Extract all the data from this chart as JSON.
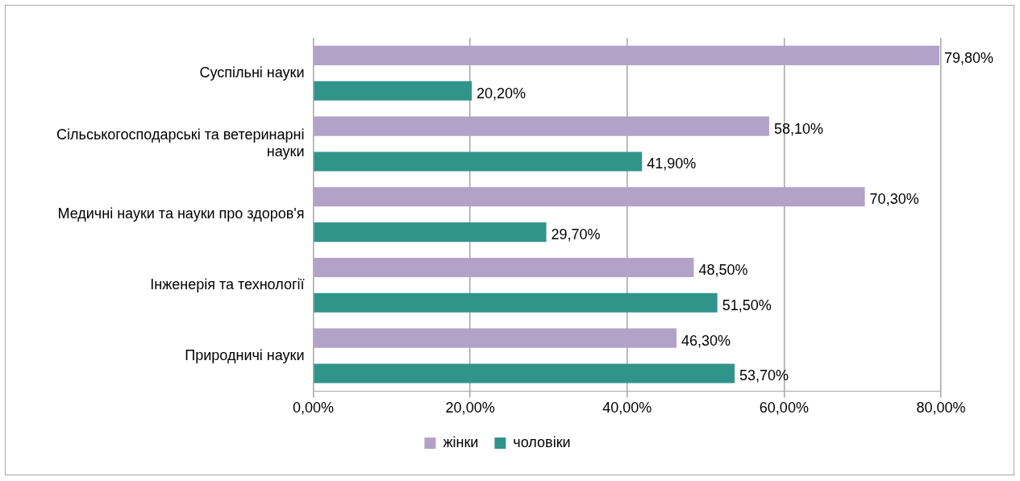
{
  "chart_data": {
    "type": "bar",
    "orientation": "horizontal",
    "categories": [
      "Суспільні науки",
      "Сільськогосподарські та ветеринарні науки",
      "Медичні науки та науки про здоров'я",
      "Інженерія та технології",
      "Природничі науки"
    ],
    "series": [
      {
        "name": "жінки",
        "color": "#b3a2c7",
        "values": [
          79.8,
          58.1,
          70.3,
          48.5,
          46.3
        ],
        "value_labels": [
          "79,80%",
          "58,10%",
          "70,30%",
          "48,50%",
          "46,30%"
        ]
      },
      {
        "name": "чоловіки",
        "color": "#31948a",
        "values": [
          20.2,
          41.9,
          29.7,
          51.5,
          53.7
        ],
        "value_labels": [
          "20,20%",
          "41,90%",
          "29,70%",
          "51,50%",
          "53,70%"
        ]
      }
    ],
    "xlim": [
      0,
      80
    ],
    "xticks": [
      {
        "value": 0,
        "label": "0,00%"
      },
      {
        "value": 20,
        "label": "20,00%"
      },
      {
        "value": 40,
        "label": "40,00%"
      },
      {
        "value": 60,
        "label": "60,00%"
      },
      {
        "value": 80,
        "label": "80,00%"
      }
    ],
    "grid": "x",
    "legend": "bottom"
  }
}
